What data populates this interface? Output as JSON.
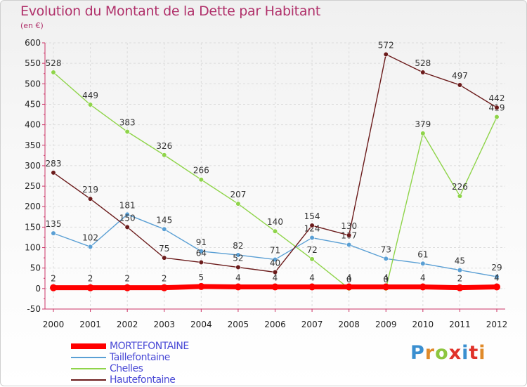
{
  "header": {
    "title": "Evolution du Montant de la Dette par Habitant",
    "subtitle": "(en €)"
  },
  "logo": {
    "text": "Proxiti"
  },
  "chart_data": {
    "type": "line",
    "title": "Evolution du Montant de la Dette par Habitant",
    "subtitle": "(en €)",
    "xlabel": "",
    "ylabel": "",
    "x": [
      2000,
      2001,
      2002,
      2003,
      2004,
      2005,
      2006,
      2007,
      2008,
      2009,
      2010,
      2011,
      2012
    ],
    "ylim": [
      -50,
      600
    ],
    "yticks": [
      -50,
      0,
      50,
      100,
      150,
      200,
      250,
      300,
      350,
      400,
      450,
      500,
      550,
      600
    ],
    "grid": true,
    "legend_position": "bottom-left",
    "series": [
      {
        "name": "MORTEFONTAINE",
        "color": "#ff0000",
        "values": [
          2,
          2,
          2,
          2,
          5,
          4,
          4,
          4,
          4,
          4,
          4,
          2,
          4
        ]
      },
      {
        "name": "Taillefontaine",
        "color": "#5a9fd4",
        "values": [
          135,
          102,
          181,
          145,
          91,
          82,
          71,
          124,
          107,
          73,
          61,
          45,
          29
        ]
      },
      {
        "name": "Chelles",
        "color": "#8fd44a",
        "values": [
          528,
          449,
          383,
          326,
          266,
          207,
          140,
          72,
          0,
          0,
          379,
          226,
          419
        ]
      },
      {
        "name": "Hautefontaine",
        "color": "#6b1b1b",
        "values": [
          283,
          219,
          150,
          75,
          64,
          52,
          40,
          154,
          130,
          572,
          528,
          497,
          442
        ]
      }
    ]
  }
}
